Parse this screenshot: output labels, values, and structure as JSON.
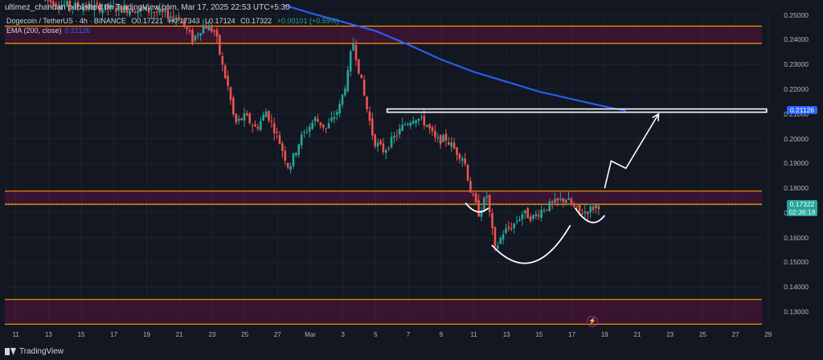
{
  "header": {
    "published": "ultimez_chandan published on TradingView.com, Mar 17, 2025 22:53 UTC+5:30",
    "symbol": "Dogecoin / TetherUS · 4h · BINANCE",
    "ohlc": {
      "open": "O0.17221",
      "high": "H0.17343",
      "low": "L0.17124",
      "close": "C0.17322",
      "change": "+0.00101 (+0.59%)"
    },
    "indicator_label": "EMA (200, close)",
    "indicator_value": "0.21126"
  },
  "price_badges": {
    "ema": {
      "value": "0.21126",
      "color": "#2962ff"
    },
    "last": {
      "value": "0.17322",
      "countdown": "02:36:18",
      "color": "#26a69a"
    }
  },
  "footer": {
    "brand": "TradingView"
  },
  "chart_data": {
    "type": "candlestick",
    "y_ticks": [
      "0.25000",
      "0.24000",
      "0.23000",
      "0.22000",
      "0.21000",
      "0.20000",
      "0.19000",
      "0.18000",
      "0.17000",
      "0.16000",
      "0.15000",
      "0.14000",
      "0.13000"
    ],
    "x_ticks": [
      "11",
      "13",
      "15",
      "17",
      "19",
      "21",
      "23",
      "25",
      "27",
      "Mar",
      "3",
      "5",
      "7",
      "9",
      "11",
      "13",
      "15",
      "17",
      "19",
      "21",
      "23",
      "25",
      "27",
      "29"
    ],
    "ylim": [
      0.1245,
      0.2515
    ],
    "colors": {
      "up": "#26a69a",
      "down": "#ef5350",
      "ema": "#2962ff",
      "zone": "#ff9800"
    },
    "zones": [
      {
        "from": 0.2385,
        "to": 0.2455
      },
      {
        "from": 0.1735,
        "to": 0.1788
      },
      {
        "from": 0.125,
        "to": 0.135
      }
    ],
    "resistance_box": {
      "from_day": 4.7,
      "to_day": 27.9,
      "low": 0.2107,
      "high": 0.212
    },
    "ema_line": [
      [
        -1.6,
        0.254
      ],
      [
        0,
        0.2508
      ],
      [
        2,
        0.2472
      ],
      [
        4,
        0.2435
      ],
      [
        6,
        0.238
      ],
      [
        8,
        0.232
      ],
      [
        10,
        0.227
      ],
      [
        12,
        0.223
      ],
      [
        14,
        0.219
      ],
      [
        16,
        0.216
      ],
      [
        18,
        0.213
      ],
      [
        19.3,
        0.21126
      ]
    ],
    "price_path": [
      [
        -16.2,
        0.256
      ],
      [
        -15,
        0.254
      ],
      [
        -13,
        0.253
      ],
      [
        -10,
        0.252
      ],
      [
        -8,
        0.249
      ],
      [
        -7.2,
        0.24
      ],
      [
        -6.5,
        0.246
      ],
      [
        -5.8,
        0.243
      ],
      [
        -5.4,
        0.23
      ],
      [
        -5.0,
        0.22
      ],
      [
        -4.6,
        0.206
      ],
      [
        -4.0,
        0.209
      ],
      [
        -3.3,
        0.204
      ],
      [
        -2.7,
        0.211
      ],
      [
        -2.0,
        0.201
      ],
      [
        -1.3,
        0.188
      ],
      [
        -0.6,
        0.2
      ],
      [
        0.3,
        0.208
      ],
      [
        1.0,
        0.204
      ],
      [
        1.8,
        0.213
      ],
      [
        2.3,
        0.226
      ],
      [
        2.6,
        0.24
      ],
      [
        3.0,
        0.227
      ],
      [
        3.4,
        0.214
      ],
      [
        3.9,
        0.199
      ],
      [
        4.5,
        0.195
      ],
      [
        5.2,
        0.201
      ],
      [
        5.8,
        0.206
      ],
      [
        6.4,
        0.209
      ],
      [
        7.1,
        0.206
      ],
      [
        7.7,
        0.199
      ],
      [
        8.3,
        0.2
      ],
      [
        8.9,
        0.195
      ],
      [
        9.4,
        0.192
      ],
      [
        9.8,
        0.179
      ],
      [
        10.3,
        0.17
      ],
      [
        10.8,
        0.177
      ],
      [
        11.3,
        0.155
      ],
      [
        11.8,
        0.162
      ],
      [
        12.4,
        0.165
      ],
      [
        13.0,
        0.17
      ],
      [
        13.6,
        0.168
      ],
      [
        14.3,
        0.172
      ],
      [
        15.0,
        0.174
      ],
      [
        15.6,
        0.176
      ],
      [
        16.1,
        0.172
      ],
      [
        16.5,
        0.17
      ],
      [
        17.0,
        0.171
      ],
      [
        17.6,
        0.1732
      ]
    ],
    "shoulders": {
      "left": [
        [
          9.5,
          0.174
        ],
        [
          10.2,
          0.168
        ],
        [
          10.9,
          0.172
        ]
      ],
      "head": [
        [
          11.1,
          0.157
        ],
        [
          13.6,
          0.139
        ],
        [
          15.9,
          0.165
        ]
      ],
      "right": [
        [
          16.2,
          0.172
        ],
        [
          17.2,
          0.162
        ],
        [
          18.0,
          0.169
        ]
      ]
    },
    "projection": [
      [
        18.0,
        0.18
      ],
      [
        18.4,
        0.191
      ],
      [
        19.3,
        0.188
      ],
      [
        21.3,
        0.21
      ]
    ]
  }
}
